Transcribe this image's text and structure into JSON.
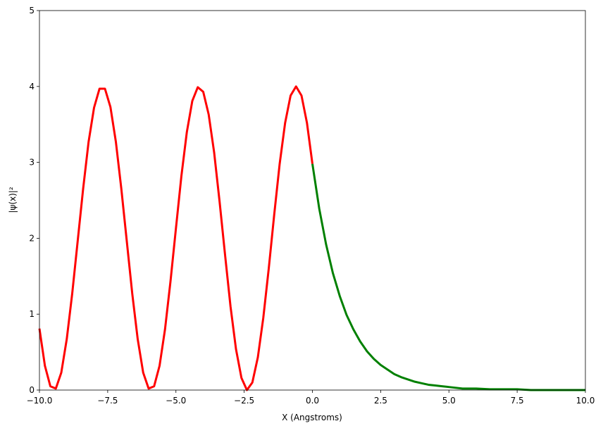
{
  "chart_data": {
    "type": "line",
    "xlabel": "X (Angstroms)",
    "ylabel": "|ψ(x)|²",
    "xlim": [
      -10,
      10
    ],
    "ylim": [
      0,
      5
    ],
    "xticks": [
      {
        "value": -10,
        "label": "−10.0"
      },
      {
        "value": -7.5,
        "label": "−7.5"
      },
      {
        "value": -5,
        "label": "−5.0"
      },
      {
        "value": -2.5,
        "label": "−2.5"
      },
      {
        "value": 0,
        "label": "0.0"
      },
      2.5,
      {
        "value": 5,
        "label": "5.0"
      },
      7.5,
      {
        "value": 10,
        "label": "10.0"
      }
    ],
    "yticks": [
      0,
      1,
      2,
      3,
      4,
      5
    ],
    "series": [
      {
        "color": "#ff0000",
        "x": [
          -10,
          -9.8,
          -9.6,
          -9.4,
          -9.2,
          -9,
          -8.8,
          -8.6,
          -8.4,
          -8.2,
          -8,
          -7.8,
          -7.6,
          -7.4,
          -7.2,
          -7,
          -6.8,
          -6.6,
          -6.4,
          -6.2,
          -6,
          -5.8,
          -5.6,
          -5.4,
          -5.2,
          -5,
          -4.8,
          -4.6,
          -4.4,
          -4.2,
          -4,
          -3.8,
          -3.6,
          -3.4,
          -3.2,
          -3,
          -2.8,
          -2.6,
          -2.4,
          -2.2,
          -2,
          -1.8,
          -1.6,
          -1.4,
          -1.2,
          -1,
          -0.8,
          -0.6,
          -0.4,
          -0.2,
          0
        ],
        "values": [
          0.81,
          0.32,
          0.05,
          0.02,
          0.23,
          0.67,
          1.27,
          1.96,
          2.65,
          3.27,
          3.72,
          3.97,
          3.97,
          3.73,
          3.27,
          2.65,
          1.96,
          1.27,
          0.67,
          0.23,
          0.02,
          0.05,
          0.32,
          0.8,
          1.43,
          2.13,
          2.82,
          3.4,
          3.81,
          3.99,
          3.93,
          3.63,
          3.13,
          2.48,
          1.78,
          1.1,
          0.54,
          0.16,
          0,
          0.1,
          0.43,
          0.95,
          1.6,
          2.31,
          2.98,
          3.52,
          3.88,
          4,
          3.88,
          3.52,
          2.98
        ]
      },
      {
        "color": "#008000",
        "x": [
          0,
          0.25,
          0.5,
          0.75,
          1,
          1.25,
          1.5,
          1.75,
          2,
          2.25,
          2.5,
          2.75,
          3,
          3.25,
          3.5,
          3.75,
          4,
          4.25,
          4.5,
          4.75,
          5,
          5.5,
          6,
          6.5,
          7,
          7.5,
          8,
          8.5,
          9,
          9.5,
          10
        ],
        "values": [
          2.98,
          2.39,
          1.92,
          1.54,
          1.24,
          0.99,
          0.8,
          0.64,
          0.51,
          0.41,
          0.33,
          0.27,
          0.21,
          0.17,
          0.14,
          0.11,
          0.09,
          0.07,
          0.06,
          0.05,
          0.04,
          0.02,
          0.02,
          0.01,
          0.01,
          0.01,
          0,
          0,
          0,
          0,
          0
        ]
      }
    ]
  }
}
